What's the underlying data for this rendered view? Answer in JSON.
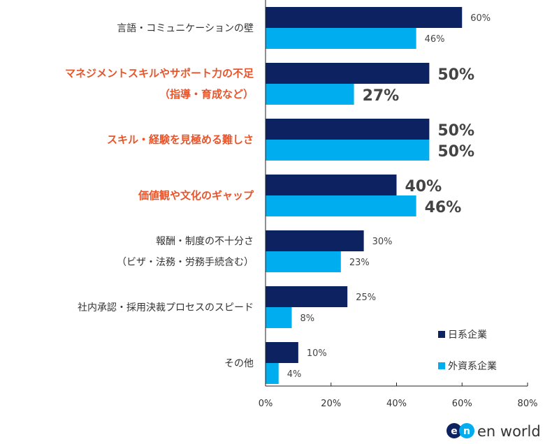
{
  "chart_data": {
    "type": "bar",
    "orientation": "horizontal",
    "categories": [
      {
        "lines": [
          "言語・コミュニケーションの壁"
        ],
        "highlight": false
      },
      {
        "lines": [
          "マネジメントスキルやサポート力の不足",
          "（指導・育成など）"
        ],
        "highlight": true
      },
      {
        "lines": [
          "スキル・経験を見極める難しさ"
        ],
        "highlight": true
      },
      {
        "lines": [
          "価値観や文化のギャップ"
        ],
        "highlight": true
      },
      {
        "lines": [
          "報酬・制度の不十分さ",
          "（ビザ・法務・労務手続含む）"
        ],
        "highlight": false
      },
      {
        "lines": [
          "社内承認・採用決裁プロセスのスピード"
        ],
        "highlight": false
      },
      {
        "lines": [
          "その他"
        ],
        "highlight": false
      }
    ],
    "series": [
      {
        "name": "日系企業",
        "color": "#0d2260",
        "values": [
          60,
          50,
          50,
          40,
          30,
          25,
          10
        ]
      },
      {
        "name": "外資系企業",
        "color": "#00adef",
        "values": [
          46,
          27,
          50,
          46,
          23,
          8,
          4
        ]
      }
    ],
    "xlim": [
      0,
      80
    ],
    "xticks": [
      "0%",
      "20%",
      "40%",
      "60%",
      "80%"
    ],
    "value_suffix": "%",
    "highlight_color": "#e8552b",
    "legend_position": "bottom-right",
    "grid": false
  },
  "logo": {
    "text": "en world"
  }
}
